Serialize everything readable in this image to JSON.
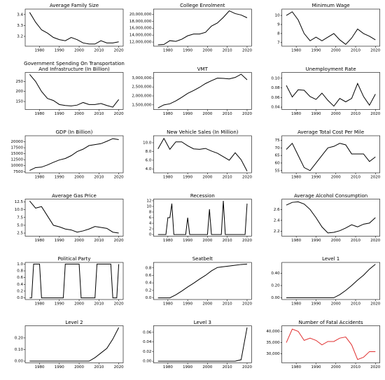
{
  "chart_data": [
    {
      "type": "line",
      "title": "Average Family Size",
      "x": [
        1975,
        1978,
        1981,
        1984,
        1987,
        1990,
        1993,
        1996,
        1999,
        2002,
        2005,
        2008,
        2011,
        2014,
        2017,
        2020
      ],
      "values": [
        3.42,
        3.33,
        3.26,
        3.23,
        3.19,
        3.17,
        3.16,
        3.19,
        3.17,
        3.14,
        3.13,
        3.13,
        3.16,
        3.14,
        3.14,
        3.15
      ],
      "color": "#000000",
      "xlim": [
        1972.75,
        2022.25
      ],
      "xticks": [
        1980,
        1990,
        2000,
        2010,
        2020
      ],
      "ylim": [
        3.11,
        3.45
      ],
      "yticks": [
        3.2,
        3.3,
        3.4
      ]
    },
    {
      "type": "line",
      "title": "College Enrolment",
      "x": [
        1975,
        1978,
        1981,
        1984,
        1987,
        1990,
        1993,
        1996,
        1999,
        2002,
        2005,
        2008,
        2011,
        2014,
        2017,
        2020
      ],
      "values": [
        11200000,
        11300000,
        12400000,
        12200000,
        12800000,
        13800000,
        14300000,
        14300000,
        14800000,
        16600000,
        17500000,
        19100000,
        21000000,
        20200000,
        19800000,
        19000000
      ],
      "color": "#000000",
      "xlim": [
        1972.75,
        2022.25
      ],
      "xticks": [
        1980,
        1990,
        2000,
        2010,
        2020
      ],
      "ylim": [
        10800000,
        21500000
      ],
      "yticks": [
        {
          "value": 12000000,
          "label": "12,000,000"
        },
        {
          "value": 14000000,
          "label": "14,000,000"
        },
        {
          "value": 16000000,
          "label": "16,000,000"
        },
        {
          "value": 18000000,
          "label": "18,000,000"
        },
        {
          "value": 20000000,
          "label": "20,000,000"
        }
      ]
    },
    {
      "type": "line",
      "title": "Minimum Wage",
      "x": [
        1975,
        1978,
        1981,
        1984,
        1987,
        1990,
        1993,
        1996,
        1999,
        2002,
        2005,
        2008,
        2011,
        2014,
        2017,
        2020
      ],
      "values": [
        10.0,
        10.4,
        9.5,
        8.0,
        7.2,
        7.6,
        7.2,
        7.6,
        8.0,
        7.3,
        6.8,
        7.5,
        8.5,
        8.0,
        7.7,
        7.3
      ],
      "color": "#000000",
      "xlim": [
        1972.75,
        2022.25
      ],
      "xticks": [
        1980,
        1990,
        2000,
        2010,
        2020
      ],
      "ylim": [
        6.6,
        10.7
      ],
      "yticks": [
        7,
        8,
        9,
        10
      ]
    },
    {
      "type": "line",
      "title": "Government Spending On Transportation And Infrastructure (In Billion)",
      "x": [
        1975,
        1978,
        1981,
        1984,
        1987,
        1990,
        1993,
        1996,
        1999,
        2002,
        2005,
        2008,
        2011,
        2014,
        2017,
        2020
      ],
      "values": [
        285,
        250,
        200,
        165,
        155,
        135,
        130,
        128,
        132,
        145,
        135,
        135,
        140,
        130,
        122,
        160
      ],
      "color": "#000000",
      "xlim": [
        1972.75,
        2022.25
      ],
      "xticks": [
        1980,
        1990,
        2000,
        2010,
        2020
      ],
      "ylim": [
        110,
        295
      ],
      "yticks": [
        150,
        200,
        250
      ]
    },
    {
      "type": "line",
      "title": "VMT",
      "x": [
        1975,
        1978,
        1981,
        1984,
        1987,
        1990,
        1993,
        1996,
        1999,
        2002,
        2005,
        2008,
        2011,
        2014,
        2017,
        2020
      ],
      "values": [
        1330000,
        1500000,
        1560000,
        1720000,
        1920000,
        2140000,
        2300000,
        2480000,
        2690000,
        2850000,
        2990000,
        2980000,
        2950000,
        3030000,
        3210000,
        2900000
      ],
      "color": "#000000",
      "xlim": [
        1972.75,
        2022.25
      ],
      "xticks": [
        1980,
        1990,
        2000,
        2010,
        2020
      ],
      "ylim": [
        1240000,
        3310000
      ],
      "yticks": [
        {
          "value": 1500000,
          "label": "1,500,000"
        },
        {
          "value": 2000000,
          "label": "2,000,000"
        },
        {
          "value": 2500000,
          "label": "2,500,000"
        },
        {
          "value": 3000000,
          "label": "3,000,000"
        }
      ]
    },
    {
      "type": "line",
      "title": "Unemployment Rate",
      "x": [
        1975,
        1978,
        1981,
        1984,
        1987,
        1990,
        1993,
        1996,
        1999,
        2002,
        2005,
        2008,
        2011,
        2014,
        2017,
        2020
      ],
      "values": [
        0.085,
        0.061,
        0.076,
        0.075,
        0.062,
        0.056,
        0.069,
        0.054,
        0.042,
        0.058,
        0.051,
        0.058,
        0.089,
        0.062,
        0.044,
        0.067
      ],
      "color": "#000000",
      "xlim": [
        1972.75,
        2022.25
      ],
      "xticks": [
        1980,
        1990,
        2000,
        2010,
        2020
      ],
      "ylim": [
        0.035,
        0.112
      ],
      "yticks": [
        0.04,
        0.06,
        0.08,
        {
          "value": 0.1,
          "label": "0.10"
        }
      ]
    },
    {
      "type": "line",
      "title": "GDP (In Billion)",
      "x": [
        1975,
        1978,
        1981,
        1984,
        1987,
        1990,
        1993,
        1996,
        1999,
        2002,
        2005,
        2008,
        2011,
        2014,
        2017,
        2020
      ],
      "values": [
        8000,
        9200,
        9400,
        10300,
        11400,
        12400,
        13000,
        14200,
        15900,
        16900,
        18400,
        18800,
        19200,
        20200,
        21300,
        20900
      ],
      "color": "#000000",
      "xlim": [
        1972.75,
        2022.25
      ],
      "xticks": [
        1980,
        1990,
        2000,
        2010,
        2020
      ],
      "ylim": [
        7000,
        22500
      ],
      "yticks": [
        7500,
        10000,
        12500,
        15000,
        17500,
        20000
      ]
    },
    {
      "type": "line",
      "title": "New Vehicle Sales (In Million)",
      "x": [
        1975,
        1978,
        1981,
        1984,
        1987,
        1990,
        1993,
        1996,
        1999,
        2002,
        2005,
        2008,
        2011,
        2014,
        2017,
        2020
      ],
      "values": [
        8.6,
        11.0,
        8.5,
        10.2,
        10.2,
        9.3,
        8.6,
        8.5,
        8.7,
        8.1,
        7.6,
        6.8,
        6.0,
        7.7,
        6.1,
        3.5
      ],
      "color": "#000000",
      "xlim": [
        1972.75,
        2022.25
      ],
      "xticks": [
        1980,
        1990,
        2000,
        2010,
        2020
      ],
      "ylim": [
        3.1,
        11.6
      ],
      "yticks": [
        {
          "value": 4,
          "label": "4.0"
        },
        {
          "value": 6,
          "label": "6.0"
        },
        {
          "value": 8,
          "label": "8.0"
        },
        {
          "value": 10,
          "label": "10.0"
        }
      ]
    },
    {
      "type": "line",
      "title": "Average Total Cost Per Mile",
      "x": [
        1975,
        1978,
        1981,
        1984,
        1987,
        1990,
        1993,
        1996,
        1999,
        2002,
        2005,
        2008,
        2011,
        2014,
        2017,
        2020
      ],
      "values": [
        69,
        73,
        65,
        57,
        55,
        60,
        65,
        70,
        71,
        73,
        72,
        66,
        66,
        66,
        61,
        64
      ],
      "color": "#000000",
      "xlim": [
        1972.75,
        2022.25
      ],
      "xticks": [
        1980,
        1990,
        2000,
        2010,
        2020
      ],
      "ylim": [
        53.5,
        78
      ],
      "yticks": [
        55,
        60,
        65,
        70,
        75
      ]
    },
    {
      "type": "line",
      "title": "Average Gas Price",
      "x": [
        1975,
        1978,
        1981,
        1984,
        1987,
        1990,
        1993,
        1996,
        1999,
        2002,
        2005,
        2008,
        2011,
        2014,
        2017,
        2020
      ],
      "values": [
        12.8,
        10.5,
        11.0,
        8.0,
        5.0,
        4.5,
        3.8,
        3.5,
        2.8,
        3.2,
        3.8,
        4.6,
        4.3,
        4.0,
        2.8,
        2.5
      ],
      "color": "#000000",
      "xlim": [
        1972.75,
        2022.25
      ],
      "xticks": [
        1980,
        1990,
        2000,
        2010,
        2020
      ],
      "ylim": [
        1.5,
        13.4
      ],
      "yticks": [
        2.5,
        {
          "value": 5,
          "label": "5.0"
        },
        7.5,
        {
          "value": 10,
          "label": "10.0"
        },
        12.5
      ]
    },
    {
      "type": "line",
      "title": "Recession",
      "x": [
        1975,
        1976,
        1977,
        1978,
        1979,
        1980,
        1981,
        1982,
        1983,
        1984,
        1985,
        1986,
        1987,
        1988,
        1989,
        1990,
        1991,
        1992,
        1993,
        1994,
        1995,
        1996,
        1997,
        1998,
        1999,
        2000,
        2001,
        2002,
        2003,
        2004,
        2005,
        2006,
        2007,
        2008,
        2009,
        2010,
        2011,
        2012,
        2013,
        2014,
        2015,
        2016,
        2017,
        2018,
        2019,
        2020
      ],
      "values": [
        0,
        0,
        0,
        0,
        0,
        6,
        6,
        11,
        0,
        0,
        0,
        0,
        0,
        0,
        0,
        6,
        0,
        0,
        0,
        0,
        0,
        0,
        0,
        0,
        0,
        0,
        9,
        0,
        0,
        0,
        0,
        0,
        0,
        12,
        0,
        0,
        0,
        0,
        0,
        0,
        0,
        0,
        0,
        0,
        0,
        11
      ],
      "color": "#000000",
      "xlim": [
        1972.75,
        2022.25
      ],
      "xticks": [
        1980,
        1990,
        2000,
        2010,
        2020
      ],
      "ylim": [
        -0.6,
        12.6
      ],
      "yticks": [
        0,
        2,
        4,
        6,
        8,
        10,
        12
      ]
    },
    {
      "type": "line",
      "title": "Average Alcohol Consumption",
      "x": [
        1975,
        1978,
        1981,
        1984,
        1987,
        1990,
        1993,
        1996,
        1999,
        2002,
        2005,
        2008,
        2011,
        2014,
        2017,
        2020
      ],
      "values": [
        2.68,
        2.73,
        2.74,
        2.7,
        2.6,
        2.45,
        2.28,
        2.17,
        2.18,
        2.21,
        2.26,
        2.32,
        2.28,
        2.33,
        2.35,
        2.45
      ],
      "color": "#000000",
      "xlim": [
        1972.75,
        2022.25
      ],
      "xticks": [
        1980,
        1990,
        2000,
        2010,
        2020
      ],
      "ylim": [
        2.11,
        2.79
      ],
      "yticks": [
        2.2,
        2.4,
        2.6
      ]
    },
    {
      "type": "line",
      "title": "Political Party",
      "x": [
        1975,
        1976,
        1977,
        1978,
        1979,
        1980,
        1981,
        1982,
        1983,
        1984,
        1985,
        1986,
        1987,
        1988,
        1989,
        1990,
        1991,
        1992,
        1993,
        1994,
        1995,
        1996,
        1997,
        1998,
        1999,
        2000,
        2001,
        2002,
        2003,
        2004,
        2005,
        2006,
        2007,
        2008,
        2009,
        2010,
        2011,
        2012,
        2013,
        2014,
        2015,
        2016,
        2017,
        2018,
        2019,
        2020
      ],
      "values": [
        0,
        0,
        1,
        1,
        1,
        1,
        0,
        0,
        0,
        0,
        0,
        0,
        0,
        0,
        0,
        0,
        0,
        0,
        1,
        1,
        1,
        1,
        1,
        1,
        1,
        1,
        0,
        0,
        0,
        0,
        0,
        0,
        0,
        0,
        1,
        1,
        1,
        1,
        1,
        1,
        1,
        1,
        0,
        0,
        0,
        1
      ],
      "color": "#000000",
      "xlim": [
        1972.75,
        2022.25
      ],
      "xticks": [
        1980,
        1990,
        2000,
        2010,
        2020
      ],
      "ylim": [
        -0.05,
        1.05
      ],
      "yticks": [
        {
          "value": 0,
          "label": "0.0"
        },
        0.2,
        0.4,
        0.6,
        0.8,
        {
          "value": 1,
          "label": "1.0"
        }
      ]
    },
    {
      "type": "line",
      "title": "Seatbelt",
      "x": [
        1975,
        1978,
        1981,
        1984,
        1987,
        1990,
        1993,
        1996,
        1999,
        2002,
        2005,
        2008,
        2011,
        2014,
        2017,
        2020
      ],
      "values": [
        0,
        0,
        0,
        0.08,
        0.18,
        0.29,
        0.39,
        0.5,
        0.6,
        0.72,
        0.81,
        0.83,
        0.85,
        0.87,
        0.89,
        0.9
      ],
      "color": "#000000",
      "xlim": [
        1972.75,
        2022.25
      ],
      "xticks": [
        1980,
        1990,
        2000,
        2010,
        2020
      ],
      "ylim": [
        -0.045,
        0.945
      ],
      "yticks": [
        {
          "value": 0,
          "label": "0.0"
        },
        0.2,
        0.4,
        0.6,
        0.8
      ]
    },
    {
      "type": "line",
      "title": "Level 1",
      "x": [
        1975,
        1978,
        1981,
        1984,
        1987,
        1990,
        1993,
        1996,
        1999,
        2002,
        2005,
        2008,
        2011,
        2014,
        2017,
        2020
      ],
      "values": [
        0,
        0,
        0,
        0,
        0,
        0,
        0,
        0,
        0,
        0.05,
        0.12,
        0.2,
        0.29,
        0.37,
        0.47,
        0.55
      ],
      "color": "#000000",
      "xlim": [
        1972.75,
        2022.25
      ],
      "xticks": [
        1980,
        1990,
        2000,
        2010,
        2020
      ],
      "ylim": [
        -0.03,
        0.58
      ],
      "yticks": [
        {
          "value": 0,
          "label": "0.00"
        },
        {
          "value": 0.2,
          "label": "0.20"
        },
        {
          "value": 0.4,
          "label": "0.40"
        }
      ]
    },
    {
      "type": "line",
      "title": "Level 2",
      "x": [
        1975,
        1978,
        1981,
        1984,
        1987,
        1990,
        1993,
        1996,
        1999,
        2002,
        2005,
        2008,
        2011,
        2014,
        2017,
        2020
      ],
      "values": [
        0,
        0,
        0,
        0,
        0,
        0,
        0,
        0,
        0,
        0,
        0,
        0.03,
        0.07,
        0.11,
        0.19,
        0.29
      ],
      "color": "#000000",
      "xlim": [
        1972.75,
        2022.25
      ],
      "xticks": [
        1980,
        1990,
        2000,
        2010,
        2020
      ],
      "ylim": [
        -0.015,
        0.305
      ],
      "yticks": [
        {
          "value": 0,
          "label": "0.00"
        },
        {
          "value": 0.1,
          "label": "0.10"
        },
        {
          "value": 0.2,
          "label": "0.20"
        }
      ]
    },
    {
      "type": "line",
      "title": "Level 3",
      "x": [
        1975,
        1978,
        1981,
        1984,
        1987,
        1990,
        1993,
        1996,
        1999,
        2002,
        2005,
        2008,
        2011,
        2014,
        2017,
        2020
      ],
      "values": [
        0,
        0,
        0,
        0,
        0,
        0,
        0,
        0,
        0,
        0,
        0,
        0,
        0,
        0,
        0.003,
        0.07
      ],
      "color": "#000000",
      "xlim": [
        1972.75,
        2022.25
      ],
      "xticks": [
        1980,
        1990,
        2000,
        2010,
        2020
      ],
      "ylim": [
        -0.0035,
        0.0735
      ],
      "yticks": [
        {
          "value": 0,
          "label": "0.00"
        },
        {
          "value": 0.02,
          "label": "0.02"
        },
        {
          "value": 0.04,
          "label": "0.04"
        },
        {
          "value": 0.06,
          "label": "0.06"
        }
      ]
    },
    {
      "type": "line",
      "title": "Number of Fatal Accidents",
      "x": [
        1975,
        1978,
        1981,
        1984,
        1987,
        1990,
        1993,
        1996,
        1999,
        2002,
        2005,
        2008,
        2011,
        2014,
        2017,
        2020
      ],
      "values": [
        35000,
        41000,
        40000,
        36000,
        37000,
        36000,
        34000,
        35500,
        35500,
        37000,
        37500,
        34000,
        27500,
        28500,
        31000,
        31000
      ],
      "color": "#e03030",
      "xlim": [
        1972.75,
        2022.25
      ],
      "xticks": [
        1980,
        1990,
        2000,
        2010,
        2020
      ],
      "ylim": [
        26000,
        42500
      ],
      "yticks": [
        {
          "value": 30000,
          "label": "30,000"
        },
        {
          "value": 35000,
          "label": "35,000"
        },
        {
          "value": 40000,
          "label": "40,000"
        }
      ]
    }
  ]
}
